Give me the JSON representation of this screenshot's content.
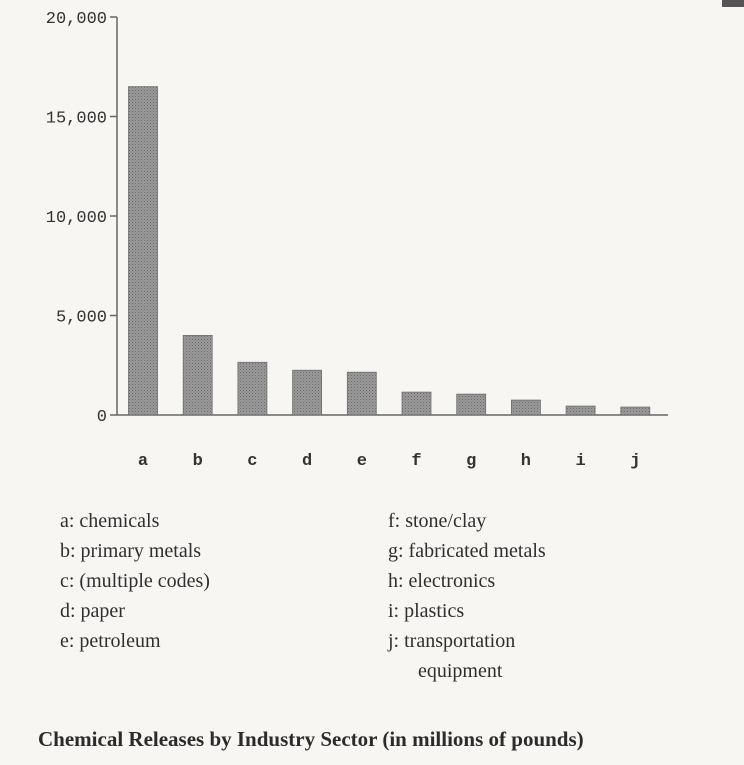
{
  "chart_data": {
    "type": "bar",
    "title": "Chemical Releases by Industry Sector (in millions of pounds)",
    "categories": [
      "a",
      "b",
      "c",
      "d",
      "e",
      "f",
      "g",
      "h",
      "i",
      "j"
    ],
    "values": [
      16500,
      4000,
      2650,
      2250,
      2150,
      1150,
      1050,
      750,
      450,
      400
    ],
    "ylim": [
      0,
      20000
    ],
    "yticks": [
      0,
      5000,
      10000,
      15000,
      20000
    ],
    "ytick_labels": [
      "0",
      "5,000",
      "10,000",
      "15,000",
      "20,000"
    ],
    "xlabel": "",
    "ylabel": "",
    "grid": false,
    "bar_color": "#8c8c8c",
    "legend": {
      "left": [
        "a: chemicals",
        "b: primary metals",
        "c: (multiple codes)",
        "d: paper",
        "e: petroleum"
      ],
      "right": [
        "f: stone/clay",
        "g: fabricated metals",
        "h: electronics",
        "i: plastics",
        "j: transportation",
        "equipment"
      ]
    }
  }
}
